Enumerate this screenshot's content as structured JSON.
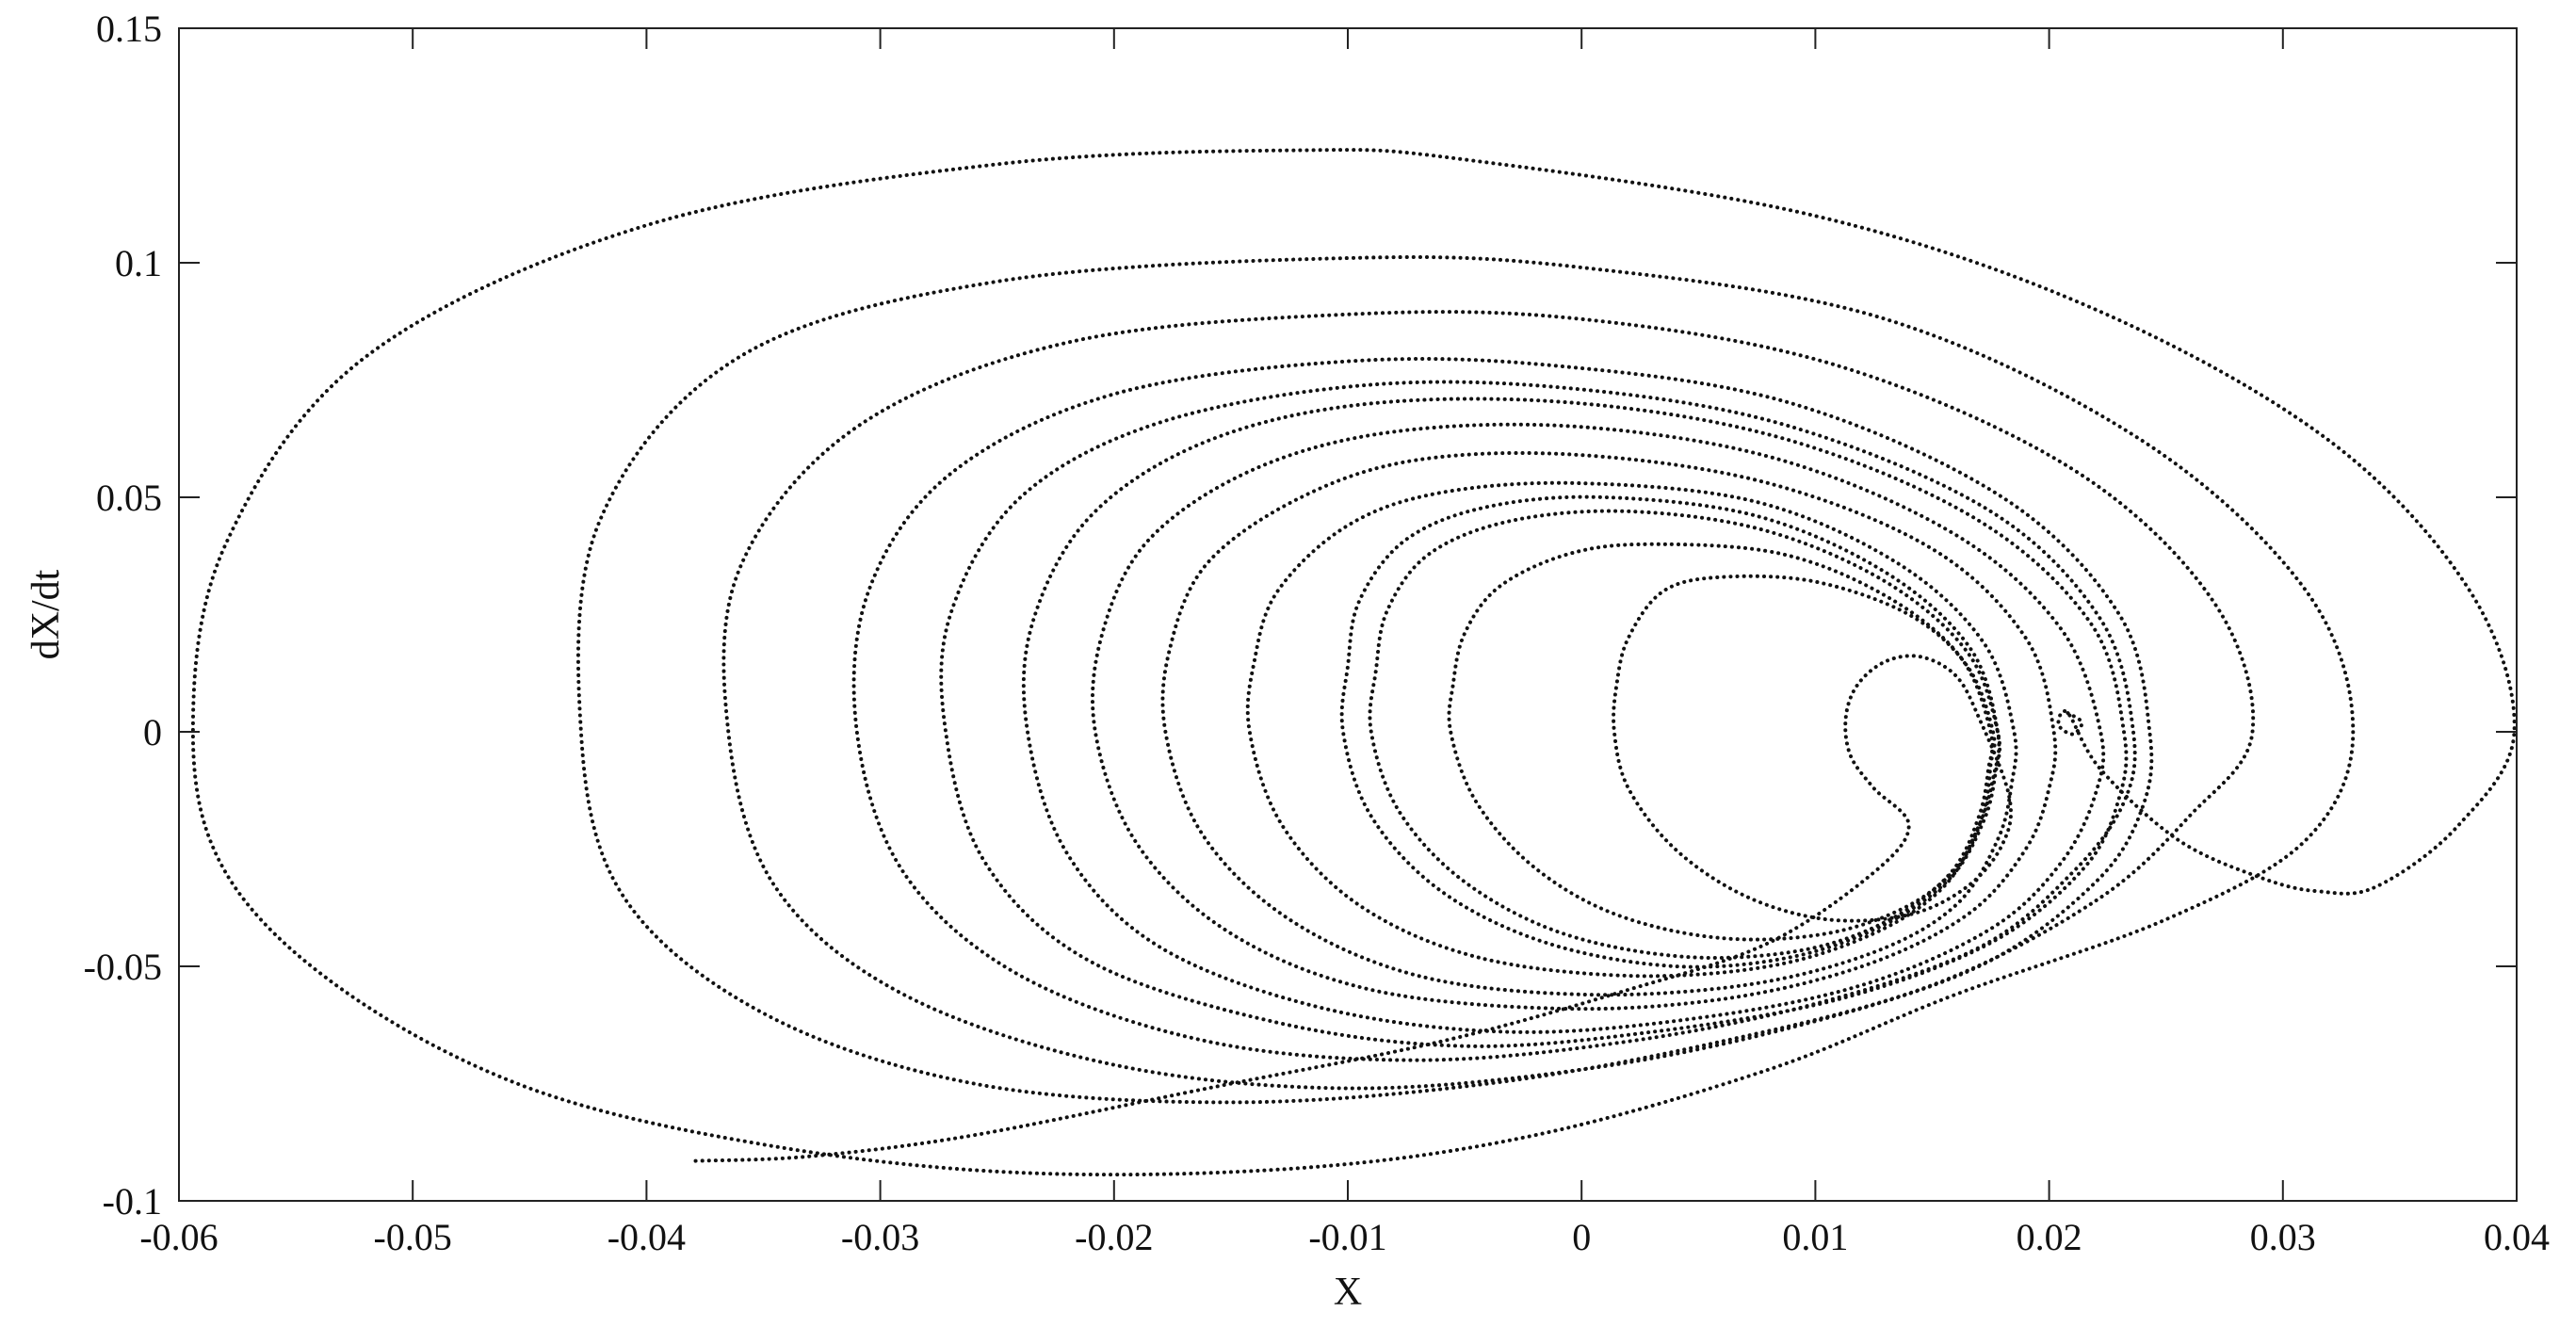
{
  "chart_data": {
    "type": "line",
    "title": "",
    "xlabel": "X",
    "ylabel": "dX/dt",
    "xlim": [
      -0.06,
      0.04
    ],
    "ylim": [
      -0.1,
      0.15
    ],
    "x_ticks": [
      -0.06,
      -0.05,
      -0.04,
      -0.03,
      -0.02,
      -0.01,
      0,
      0.01,
      0.02,
      0.03,
      0.04
    ],
    "x_tick_labels": [
      "-0.06",
      "-0.05",
      "-0.04",
      "-0.03",
      "-0.02",
      "-0.01",
      "0",
      "0.01",
      "0.02",
      "0.03",
      "0.04"
    ],
    "y_ticks": [
      -0.1,
      -0.05,
      0,
      0.05,
      0.1,
      0.15
    ],
    "y_tick_labels": [
      "-0.1",
      "-0.05",
      "0",
      "0.05",
      "0.1",
      "0.15"
    ],
    "grid": false,
    "legend": "none",
    "marker": "dots",
    "line_color": "#111111",
    "series": [
      {
        "description_free": true,
        "points": [
          [
            0.0208,
            0.004
          ],
          [
            0.0214,
            0.002
          ],
          [
            0.021,
            -0.0005
          ],
          [
            0.0204,
            0.0015
          ],
          [
            0.0208,
            0.004
          ],
          [
            0.0222,
            -0.008
          ],
          [
            0.0255,
            -0.023
          ],
          [
            0.029,
            -0.031
          ],
          [
            0.0315,
            -0.034
          ],
          [
            0.034,
            -0.033
          ],
          [
            0.0375,
            -0.02
          ],
          [
            0.0399,
            0.0
          ],
          [
            0.038,
            0.03
          ],
          [
            0.032,
            0.062
          ],
          [
            0.022,
            0.09
          ],
          [
            0.01,
            0.11
          ],
          [
            -0.005,
            0.122
          ],
          [
            -0.012,
            0.124
          ],
          [
            -0.025,
            0.121
          ],
          [
            -0.04,
            0.108
          ],
          [
            -0.052,
            0.08
          ],
          [
            -0.058,
            0.04
          ],
          [
            -0.0594,
            0.0
          ],
          [
            -0.058,
            -0.03
          ],
          [
            -0.053,
            -0.055
          ],
          [
            -0.045,
            -0.076
          ],
          [
            -0.035,
            -0.088
          ],
          [
            -0.024,
            -0.094
          ],
          [
            -0.012,
            -0.093
          ],
          [
            -0.002,
            -0.086
          ],
          [
            0.008,
            -0.072
          ],
          [
            0.016,
            -0.056
          ],
          [
            0.025,
            -0.04
          ],
          [
            0.031,
            -0.023
          ],
          [
            0.033,
            0.0
          ],
          [
            0.031,
            0.03
          ],
          [
            0.024,
            0.062
          ],
          [
            0.013,
            0.088
          ],
          [
            0.0,
            0.099
          ],
          [
            -0.01,
            0.101
          ],
          [
            -0.025,
            0.096
          ],
          [
            -0.036,
            0.08
          ],
          [
            -0.042,
            0.045
          ],
          [
            -0.0428,
            0.0
          ],
          [
            -0.041,
            -0.035
          ],
          [
            -0.035,
            -0.06
          ],
          [
            -0.026,
            -0.075
          ],
          [
            -0.015,
            -0.079
          ],
          [
            -0.004,
            -0.075
          ],
          [
            0.006,
            -0.066
          ],
          [
            0.015,
            -0.054
          ],
          [
            0.022,
            -0.036
          ],
          [
            0.026,
            -0.018
          ],
          [
            0.0287,
            0.0
          ],
          [
            0.027,
            0.028
          ],
          [
            0.021,
            0.056
          ],
          [
            0.011,
            0.078
          ],
          [
            0.0,
            0.088
          ],
          [
            -0.01,
            0.089
          ],
          [
            -0.022,
            0.083
          ],
          [
            -0.031,
            0.065
          ],
          [
            -0.036,
            0.035
          ],
          [
            -0.0365,
            0.0
          ],
          [
            -0.0345,
            -0.033
          ],
          [
            -0.029,
            -0.056
          ],
          [
            -0.02,
            -0.071
          ],
          [
            -0.01,
            -0.076
          ],
          [
            0.0,
            -0.072
          ],
          [
            0.009,
            -0.063
          ],
          [
            0.017,
            -0.05
          ],
          [
            0.022,
            -0.032
          ],
          [
            0.024,
            -0.016
          ],
          [
            0.0243,
            0.0
          ],
          [
            0.023,
            0.025
          ],
          [
            0.018,
            0.05
          ],
          [
            0.009,
            0.07
          ],
          [
            -0.001,
            0.078
          ],
          [
            -0.01,
            0.079
          ],
          [
            -0.02,
            0.072
          ],
          [
            -0.027,
            0.055
          ],
          [
            -0.0305,
            0.03
          ],
          [
            -0.031,
            0.0
          ],
          [
            -0.029,
            -0.03
          ],
          [
            -0.024,
            -0.052
          ],
          [
            -0.016,
            -0.066
          ],
          [
            -0.007,
            -0.07
          ],
          [
            0.002,
            -0.066
          ],
          [
            0.01,
            -0.058
          ],
          [
            0.017,
            -0.046
          ],
          [
            0.021,
            -0.03
          ],
          [
            0.0232,
            -0.015
          ],
          [
            0.0236,
            0.0
          ],
          [
            0.0222,
            0.024
          ],
          [
            0.0175,
            0.047
          ],
          [
            0.009,
            0.065
          ],
          [
            0.0,
            0.073
          ],
          [
            -0.009,
            0.074
          ],
          [
            -0.018,
            0.066
          ],
          [
            -0.024,
            0.05
          ],
          [
            -0.027,
            0.025
          ],
          [
            -0.0272,
            0.0
          ],
          [
            -0.0255,
            -0.028
          ],
          [
            -0.021,
            -0.049
          ],
          [
            -0.013,
            -0.062
          ],
          [
            -0.005,
            -0.067
          ],
          [
            0.003,
            -0.064
          ],
          [
            0.011,
            -0.057
          ],
          [
            0.0175,
            -0.045
          ],
          [
            0.0215,
            -0.029
          ],
          [
            0.023,
            -0.014
          ],
          [
            0.0232,
            0.0
          ],
          [
            0.0218,
            0.023
          ],
          [
            0.017,
            0.045
          ],
          [
            0.009,
            0.062
          ],
          [
            0.0,
            0.07
          ],
          [
            -0.009,
            0.07
          ],
          [
            -0.016,
            0.062
          ],
          [
            -0.021,
            0.046
          ],
          [
            -0.0235,
            0.023
          ],
          [
            -0.0237,
            0.0
          ],
          [
            -0.022,
            -0.026
          ],
          [
            -0.018,
            -0.046
          ],
          [
            -0.011,
            -0.059
          ],
          [
            -0.003,
            -0.064
          ],
          [
            0.005,
            -0.061
          ],
          [
            0.012,
            -0.054
          ],
          [
            0.0175,
            -0.042
          ],
          [
            0.0205,
            -0.028
          ],
          [
            0.022,
            -0.013
          ],
          [
            0.0222,
            0.0
          ],
          [
            0.0205,
            0.022
          ],
          [
            0.016,
            0.042
          ],
          [
            0.0085,
            0.058
          ],
          [
            0.0,
            0.065
          ],
          [
            -0.008,
            0.064
          ],
          [
            -0.014,
            0.056
          ],
          [
            -0.0185,
            0.041
          ],
          [
            -0.0205,
            0.021
          ],
          [
            -0.0208,
            0.0
          ],
          [
            -0.019,
            -0.024
          ],
          [
            -0.015,
            -0.043
          ],
          [
            -0.009,
            -0.055
          ],
          [
            -0.001,
            -0.059
          ],
          [
            0.006,
            -0.057
          ],
          [
            0.012,
            -0.05
          ],
          [
            0.0165,
            -0.039
          ],
          [
            0.019,
            -0.025
          ],
          [
            0.02,
            -0.012
          ],
          [
            0.0202,
            0.0
          ],
          [
            0.019,
            0.02
          ],
          [
            0.015,
            0.039
          ],
          [
            0.008,
            0.053
          ],
          [
            0.0,
            0.059
          ],
          [
            -0.007,
            0.058
          ],
          [
            -0.012,
            0.05
          ],
          [
            -0.016,
            0.036
          ],
          [
            -0.0176,
            0.018
          ],
          [
            -0.0178,
            0.0
          ],
          [
            -0.0162,
            -0.022
          ],
          [
            -0.0125,
            -0.04
          ],
          [
            -0.007,
            -0.052
          ],
          [
            0.0,
            -0.056
          ],
          [
            0.007,
            -0.054
          ],
          [
            0.0125,
            -0.047
          ],
          [
            0.016,
            -0.037
          ],
          [
            0.0178,
            -0.023
          ],
          [
            0.0184,
            -0.011
          ],
          [
            0.0185,
            0.0
          ],
          [
            0.0172,
            0.019
          ],
          [
            0.0135,
            0.036
          ],
          [
            0.0075,
            0.049
          ],
          [
            0.0,
            0.053
          ],
          [
            -0.006,
            0.051
          ],
          [
            -0.01,
            0.044
          ],
          [
            -0.013,
            0.03
          ],
          [
            -0.014,
            0.015
          ],
          [
            -0.0142,
            0.0
          ],
          [
            -0.0128,
            -0.02
          ],
          [
            -0.0095,
            -0.037
          ],
          [
            -0.0045,
            -0.048
          ],
          [
            0.002,
            -0.052
          ],
          [
            0.008,
            -0.05
          ],
          [
            0.0125,
            -0.043
          ],
          [
            0.0155,
            -0.033
          ],
          [
            0.017,
            -0.02
          ],
          [
            0.0176,
            -0.01
          ],
          [
            0.0178,
            0.0
          ],
          [
            0.0166,
            0.018
          ],
          [
            0.013,
            0.034
          ],
          [
            0.0075,
            0.046
          ],
          [
            0.001,
            0.05
          ],
          [
            -0.004,
            0.048
          ],
          [
            -0.0075,
            0.041
          ],
          [
            -0.0095,
            0.028
          ],
          [
            -0.01,
            0.014
          ],
          [
            -0.0102,
            0.0
          ],
          [
            -0.009,
            -0.018
          ],
          [
            -0.006,
            -0.034
          ],
          [
            -0.0015,
            -0.045
          ],
          [
            0.004,
            -0.05
          ],
          [
            0.009,
            -0.048
          ],
          [
            0.013,
            -0.041
          ],
          [
            0.0158,
            -0.031
          ],
          [
            0.0172,
            -0.019
          ],
          [
            0.0177,
            -0.009
          ],
          [
            0.0178,
            0.0
          ],
          [
            0.0165,
            0.017
          ],
          [
            0.013,
            0.032
          ],
          [
            0.0078,
            0.043
          ],
          [
            0.002,
            0.047
          ],
          [
            -0.003,
            0.045
          ],
          [
            -0.0065,
            0.038
          ],
          [
            -0.0083,
            0.026
          ],
          [
            -0.0088,
            0.013
          ],
          [
            -0.009,
            0.0
          ],
          [
            -0.0078,
            -0.017
          ],
          [
            -0.005,
            -0.032
          ],
          [
            -0.0008,
            -0.043
          ],
          [
            0.0045,
            -0.048
          ],
          [
            0.0095,
            -0.0465
          ],
          [
            0.0132,
            -0.04
          ],
          [
            0.0158,
            -0.03
          ],
          [
            0.017,
            -0.018
          ],
          [
            0.0174,
            -0.008
          ],
          [
            0.0175,
            0.0
          ],
          [
            0.0162,
            0.016
          ],
          [
            0.013,
            0.029
          ],
          [
            0.0085,
            0.038
          ],
          [
            0.003,
            0.04
          ],
          [
            -0.0005,
            0.038
          ],
          [
            -0.0035,
            0.031
          ],
          [
            -0.005,
            0.021
          ],
          [
            -0.0055,
            0.01
          ],
          [
            -0.0056,
            0.0
          ],
          [
            -0.0045,
            -0.015
          ],
          [
            -0.002,
            -0.029
          ],
          [
            0.0015,
            -0.039
          ],
          [
            0.006,
            -0.044
          ],
          [
            0.0105,
            -0.043
          ],
          [
            0.014,
            -0.037
          ],
          [
            0.0162,
            -0.028
          ],
          [
            0.0172,
            -0.017
          ],
          [
            0.0175,
            -0.007
          ],
          [
            0.0176,
            0.0
          ],
          [
            0.0165,
            0.014
          ],
          [
            0.014,
            0.025
          ],
          [
            0.01,
            0.032
          ],
          [
            0.006,
            0.033
          ],
          [
            0.0035,
            0.03
          ],
          [
            0.002,
            0.02
          ],
          [
            0.0015,
            0.01
          ],
          [
            0.0014,
            0.0
          ],
          [
            0.002,
            -0.012
          ],
          [
            0.004,
            -0.025
          ],
          [
            0.007,
            -0.035
          ],
          [
            0.0105,
            -0.04
          ],
          [
            0.014,
            -0.039
          ],
          [
            0.0165,
            -0.033
          ],
          [
            0.018,
            -0.024
          ],
          [
            0.0183,
            -0.014
          ],
          [
            0.017,
            0.003
          ],
          [
            0.016,
            0.012
          ],
          [
            0.0145,
            0.016
          ],
          [
            0.013,
            0.015
          ],
          [
            0.0118,
            0.01
          ],
          [
            0.0113,
            0.003
          ],
          [
            0.0115,
            -0.005
          ],
          [
            0.0125,
            -0.012
          ],
          [
            0.014,
            -0.02
          ],
          [
            0.0125,
            -0.03
          ],
          [
            0.008,
            -0.045
          ],
          [
            0.002,
            -0.055
          ],
          [
            -0.006,
            -0.066
          ],
          [
            -0.016,
            -0.076
          ],
          [
            -0.026,
            -0.086
          ],
          [
            -0.033,
            -0.0905
          ],
          [
            -0.038,
            -0.0915
          ]
        ]
      }
    ]
  }
}
